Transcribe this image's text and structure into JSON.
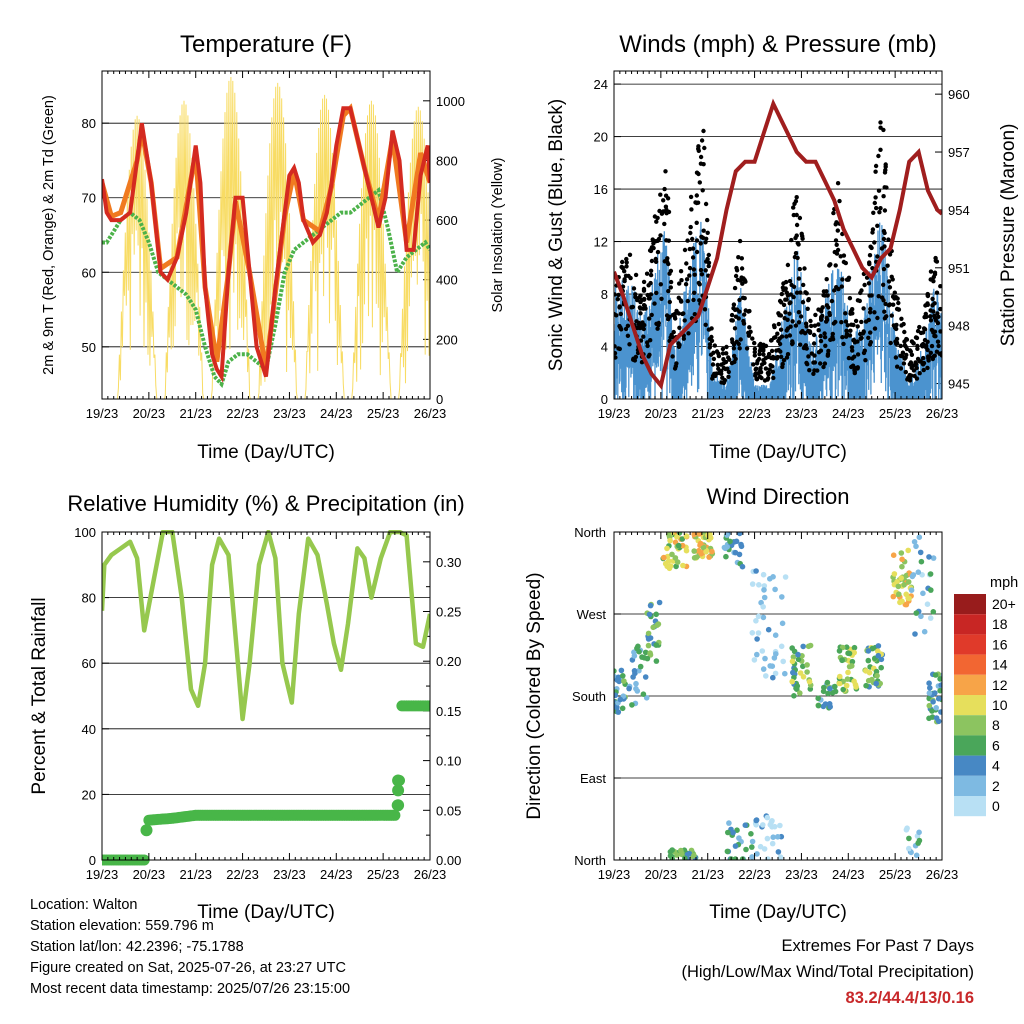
{
  "colors": {
    "temp2m": "#d42a20",
    "temp9m": "#f07a20",
    "dewpoint": "#4cb24a",
    "solar": "#f8dc64",
    "wind": "#4b93cf",
    "gust": "#000000",
    "pressure": "#a01e1e",
    "rh": "#96c84e",
    "precip": "#48b648"
  },
  "chart_data": [
    {
      "id": "temperature",
      "type": "line",
      "title": "Temperature (F)",
      "xlabel": "Time (Day/UTC)",
      "ylabel": "2m & 9m T (Red, Orange) & 2m Td (Green)",
      "ylabel_right": "Solar Insolation (Yellow)",
      "xticks": [
        "19/23",
        "20/23",
        "21/23",
        "22/23",
        "23/23",
        "24/23",
        "25/23",
        "26/23"
      ],
      "yticks": [
        50,
        60,
        70,
        80
      ],
      "ylim": [
        43,
        87
      ],
      "yticks_right": [
        0,
        200,
        400,
        600,
        800,
        1000
      ],
      "ylim_right": [
        0,
        1100
      ],
      "series": [
        {
          "name": "2m T",
          "x": [
            0,
            0.1,
            0.2,
            0.4,
            0.6,
            0.75,
            0.85,
            0.95,
            1.05,
            1.15,
            1.25,
            1.4,
            1.6,
            1.8,
            2.0,
            2.1,
            2.2,
            2.35,
            2.45,
            2.55,
            2.7,
            2.85,
            3.0,
            3.15,
            3.3,
            3.5,
            3.7,
            3.9,
            4.0,
            4.1,
            4.2,
            4.3,
            4.5,
            4.65,
            4.8,
            4.9,
            5.0,
            5.15,
            5.3,
            5.45,
            5.6,
            5.75,
            5.9,
            6.05,
            6.2,
            6.35,
            6.5,
            6.65,
            6.8,
            6.95,
            7.0
          ],
          "values": [
            72.5,
            68,
            67,
            67,
            68,
            75,
            80,
            76,
            72,
            66,
            60,
            59,
            62,
            68,
            77,
            72,
            58,
            49,
            47,
            46,
            60,
            70,
            70,
            60,
            50,
            46,
            58,
            68,
            73,
            74,
            72,
            67,
            64,
            65,
            68,
            72,
            77,
            82,
            82,
            78,
            74,
            70,
            66,
            70,
            79,
            75,
            63,
            63,
            73,
            77,
            72
          ]
        },
        {
          "name": "9m T",
          "x": [
            0,
            0.2,
            0.4,
            0.75,
            0.85,
            1.05,
            1.25,
            1.6,
            2.0,
            2.2,
            2.45,
            2.7,
            2.85,
            3.15,
            3.5,
            3.9,
            4.1,
            4.3,
            4.65,
            4.9,
            5.15,
            5.3,
            5.6,
            5.9,
            6.2,
            6.5,
            6.8,
            7.0
          ],
          "values": [
            72,
            67.5,
            68,
            75,
            79,
            72,
            60.5,
            62,
            76,
            58,
            48,
            60,
            69.5,
            60,
            47,
            67.5,
            73.5,
            67,
            65.5,
            71.5,
            81,
            82,
            74,
            67,
            78,
            64,
            76,
            72
          ]
        },
        {
          "name": "2m Td",
          "x": [
            0,
            0.1,
            0.2,
            0.4,
            0.6,
            0.8,
            1.0,
            1.2,
            1.4,
            1.6,
            1.8,
            2.0,
            2.2,
            2.4,
            2.55,
            2.7,
            2.9,
            3.1,
            3.3,
            3.5,
            3.7,
            3.9,
            4.1,
            4.3,
            4.5,
            4.7,
            4.9,
            5.1,
            5.3,
            5.5,
            5.7,
            5.9,
            6.1,
            6.3,
            6.5,
            6.7,
            6.9,
            7.0
          ],
          "values": [
            64,
            64,
            65,
            67,
            68,
            67,
            64,
            60,
            59,
            58,
            57,
            55,
            50,
            46,
            45,
            48,
            49,
            49,
            48,
            47,
            53,
            60,
            63,
            64,
            65,
            66,
            67,
            68,
            68,
            69,
            70,
            71,
            66,
            60,
            62,
            63,
            64,
            63
          ]
        }
      ],
      "solar_series": {
        "name": "Solar Insolation",
        "peak_hours": [
          0.75,
          1.75,
          2.75,
          3.75,
          4.75,
          5.75,
          6.75
        ],
        "peak_values": [
          950,
          1000,
          1080,
          1060,
          1020,
          1000,
          980
        ]
      }
    },
    {
      "id": "winds",
      "type": "scatter",
      "title": "Winds (mph) & Pressure (mb)",
      "xlabel": "Time (Day/UTC)",
      "ylabel": "Sonic Wind & Gust (Blue, Black)",
      "ylabel_right": "Station Pressure (Maroon)",
      "xticks": [
        "19/23",
        "20/23",
        "21/23",
        "22/23",
        "23/23",
        "24/23",
        "25/23",
        "26/23"
      ],
      "yticks": [
        0,
        4,
        8,
        12,
        16,
        20,
        24
      ],
      "ylim": [
        0,
        25
      ],
      "yticks_right": [
        945,
        948,
        951,
        954,
        957,
        960
      ],
      "ylim_right": [
        944.2,
        961.2
      ],
      "gust_envelope": {
        "x": [
          0,
          0.3,
          0.6,
          0.9,
          1.1,
          1.3,
          1.6,
          1.9,
          2.1,
          2.4,
          2.7,
          3.0,
          3.3,
          3.6,
          3.9,
          4.2,
          4.5,
          4.8,
          5.1,
          5.4,
          5.7,
          6.0,
          6.3,
          6.6,
          6.9,
          7.0
        ],
        "values": [
          10,
          11,
          8,
          14,
          18,
          6,
          14,
          21,
          4,
          4,
          12,
          4,
          4,
          8,
          16,
          6,
          8,
          17,
          6,
          10,
          22,
          8,
          4,
          6,
          12,
          8
        ]
      },
      "wind_envelope": {
        "x": [
          0,
          0.3,
          0.6,
          0.9,
          1.1,
          1.3,
          1.6,
          1.9,
          2.1,
          2.4,
          2.7,
          3.0,
          3.3,
          3.6,
          3.9,
          4.2,
          4.5,
          4.8,
          5.1,
          5.4,
          5.7,
          6.0,
          6.3,
          6.6,
          6.9,
          7.0
        ],
        "values": [
          8,
          9,
          6,
          10,
          12,
          4,
          10,
          13,
          2,
          1,
          8,
          1,
          1,
          6,
          11,
          4,
          7,
          11,
          4,
          8,
          13,
          5,
          1,
          4,
          9,
          7
        ]
      },
      "pressure": {
        "name": "Station Pressure",
        "x": [
          0,
          0.2,
          0.4,
          0.6,
          0.8,
          1.0,
          1.2,
          1.4,
          1.6,
          1.8,
          2.0,
          2.2,
          2.4,
          2.6,
          2.8,
          3.0,
          3.2,
          3.4,
          3.6,
          3.8,
          3.9,
          4.1,
          4.3,
          4.5,
          4.7,
          4.9,
          5.1,
          5.3,
          5.5,
          5.7,
          5.9,
          6.1,
          6.3,
          6.5,
          6.7,
          6.9,
          7.0
        ],
        "values": [
          950.8,
          949.5,
          948,
          946.5,
          945.5,
          944.9,
          947,
          947.5,
          948,
          948.5,
          950,
          951.5,
          954,
          956,
          956.5,
          956.5,
          958,
          959.5,
          958.5,
          957.5,
          957,
          956.5,
          956.5,
          955.5,
          954.5,
          953,
          952,
          951,
          950.5,
          951.5,
          952,
          954,
          956.5,
          957,
          955,
          954,
          953.8
        ]
      }
    },
    {
      "id": "humidity",
      "type": "line",
      "title": "Relative Humidity (%) & Precipitation (in)",
      "xlabel": "Time (Day/UTC)",
      "ylabel": "Percent & Total Rainfall",
      "xticks": [
        "19/23",
        "20/23",
        "21/23",
        "22/23",
        "23/23",
        "24/23",
        "25/23",
        "26/23"
      ],
      "yticks": [
        0,
        20,
        40,
        60,
        80,
        100
      ],
      "ylim": [
        0,
        100
      ],
      "yticks_right": [
        "0.00",
        "0.05",
        "0.10",
        "0.15",
        "0.20",
        "0.25",
        "0.30"
      ],
      "ylim_right": [
        0,
        0.33
      ],
      "series": [
        {
          "name": "RH",
          "x": [
            0,
            0.05,
            0.2,
            0.4,
            0.5,
            0.6,
            0.75,
            0.9,
            1.1,
            1.3,
            1.5,
            1.7,
            1.9,
            2.05,
            2.2,
            2.35,
            2.5,
            2.7,
            2.9,
            3.0,
            3.15,
            3.35,
            3.55,
            3.7,
            3.85,
            4.05,
            4.2,
            4.4,
            4.6,
            4.8,
            4.95,
            5.1,
            5.25,
            5.45,
            5.6,
            5.75,
            5.95,
            6.15,
            6.35,
            6.5,
            6.7,
            6.85,
            7.0
          ],
          "values": [
            76,
            90,
            93,
            95,
            96,
            97,
            92,
            70,
            85,
            100,
            100,
            80,
            52,
            47,
            60,
            90,
            98,
            93,
            60,
            43,
            60,
            90,
            100,
            92,
            60,
            48,
            75,
            98,
            93,
            78,
            66,
            58,
            72,
            95,
            92,
            80,
            92,
            100,
            100,
            99,
            66,
            65,
            75
          ]
        }
      ],
      "precip": {
        "name": "Total Precipitation",
        "x": [
          0,
          0.5,
          0.9,
          0.95,
          1.0,
          1.5,
          2.0,
          3.0,
          4.0,
          5.0,
          6.0,
          6.25,
          6.3,
          6.32,
          6.35,
          6.4,
          7.0
        ],
        "values": [
          0,
          0,
          0,
          0.03,
          0.04,
          0.042,
          0.045,
          0.045,
          0.045,
          0.045,
          0.045,
          0.045,
          0.055,
          0.07,
          0.08,
          0.155,
          0.155
        ]
      }
    },
    {
      "id": "direction",
      "type": "scatter",
      "title": "Wind Direction",
      "xlabel": "Time (Day/UTC)",
      "ylabel": "Direction (Colored By Speed)",
      "xticks": [
        "19/23",
        "20/23",
        "21/23",
        "22/23",
        "23/23",
        "24/23",
        "25/23",
        "26/23"
      ],
      "yticks": [
        "North",
        "East",
        "South",
        "West",
        "North"
      ],
      "ylim": [
        0,
        360
      ],
      "legend_title": "mph",
      "legend_labels": [
        "20+",
        "18",
        "16",
        "14",
        "12",
        "10",
        "8",
        "6",
        "4",
        "2",
        "0"
      ],
      "legend_colors": [
        "#981c1c",
        "#c82624",
        "#e03a2a",
        "#f26632",
        "#f7a448",
        "#e6df5c",
        "#8cc460",
        "#4aa65a",
        "#4788c4",
        "#7ebae2",
        "#b8e0f4"
      ],
      "clusters": [
        {
          "x": 0.1,
          "dir": 185,
          "spread_x": 0.15,
          "spread_dir": 25,
          "n": 30,
          "speed": 5
        },
        {
          "x": 0.5,
          "dir": 200,
          "spread_x": 0.2,
          "spread_dir": 35,
          "n": 25,
          "speed": 4
        },
        {
          "x": 0.85,
          "dir": 250,
          "spread_x": 0.15,
          "spread_dir": 35,
          "n": 25,
          "speed": 6
        },
        {
          "x": 1.3,
          "dir": 340,
          "spread_x": 0.25,
          "spread_dir": 20,
          "n": 40,
          "speed": 9
        },
        {
          "x": 1.9,
          "dir": 345,
          "spread_x": 0.2,
          "spread_dir": 15,
          "n": 40,
          "speed": 10
        },
        {
          "x": 2.55,
          "dir": 340,
          "spread_x": 0.2,
          "spread_dir": 20,
          "n": 25,
          "speed": 4
        },
        {
          "x": 3.3,
          "dir": 260,
          "spread_x": 0.4,
          "spread_dir": 60,
          "n": 40,
          "speed": 1
        },
        {
          "x": 4.0,
          "dir": 210,
          "spread_x": 0.2,
          "spread_dir": 30,
          "n": 35,
          "speed": 7
        },
        {
          "x": 4.55,
          "dir": 180,
          "spread_x": 0.2,
          "spread_dir": 15,
          "n": 20,
          "speed": 5
        },
        {
          "x": 5.0,
          "dir": 210,
          "spread_x": 0.2,
          "spread_dir": 25,
          "n": 40,
          "speed": 8
        },
        {
          "x": 5.55,
          "dir": 210,
          "spread_x": 0.2,
          "spread_dir": 25,
          "n": 35,
          "speed": 7
        },
        {
          "x": 6.15,
          "dir": 310,
          "spread_x": 0.2,
          "spread_dir": 30,
          "n": 40,
          "speed": 10
        },
        {
          "x": 6.6,
          "dir": 300,
          "spread_x": 0.25,
          "spread_dir": 60,
          "n": 25,
          "speed": 3
        },
        {
          "x": 6.85,
          "dir": 180,
          "spread_x": 0.15,
          "spread_dir": 30,
          "n": 30,
          "speed": 5
        },
        {
          "x": 1.5,
          "dir": 5,
          "spread_x": 0.3,
          "spread_dir": 6,
          "n": 25,
          "speed": 6
        },
        {
          "x": 2.7,
          "dir": 20,
          "spread_x": 0.3,
          "spread_dir": 25,
          "n": 25,
          "speed": 4
        },
        {
          "x": 3.3,
          "dir": 25,
          "spread_x": 0.3,
          "spread_dir": 25,
          "n": 25,
          "speed": 1
        },
        {
          "x": 6.4,
          "dir": 20,
          "spread_x": 0.2,
          "spread_dir": 15,
          "n": 12,
          "speed": 3
        }
      ]
    }
  ],
  "footer": {
    "location": "Location: Walton",
    "elevation": "Station elevation: 559.796 m",
    "latlon": "Station lat/lon: 42.2396; -75.1788",
    "created": "Figure created on Sat, 2025-07-26, at 23:27 UTC",
    "recent": "Most recent data timestamp: 2025/07/26 23:15:00",
    "extremes_title": "Extremes For Past 7 Days",
    "extremes_subtitle": "(High/Low/Max Wind/Total Precipitation)",
    "extremes_values": "83.2/44.4/13/0.16"
  }
}
